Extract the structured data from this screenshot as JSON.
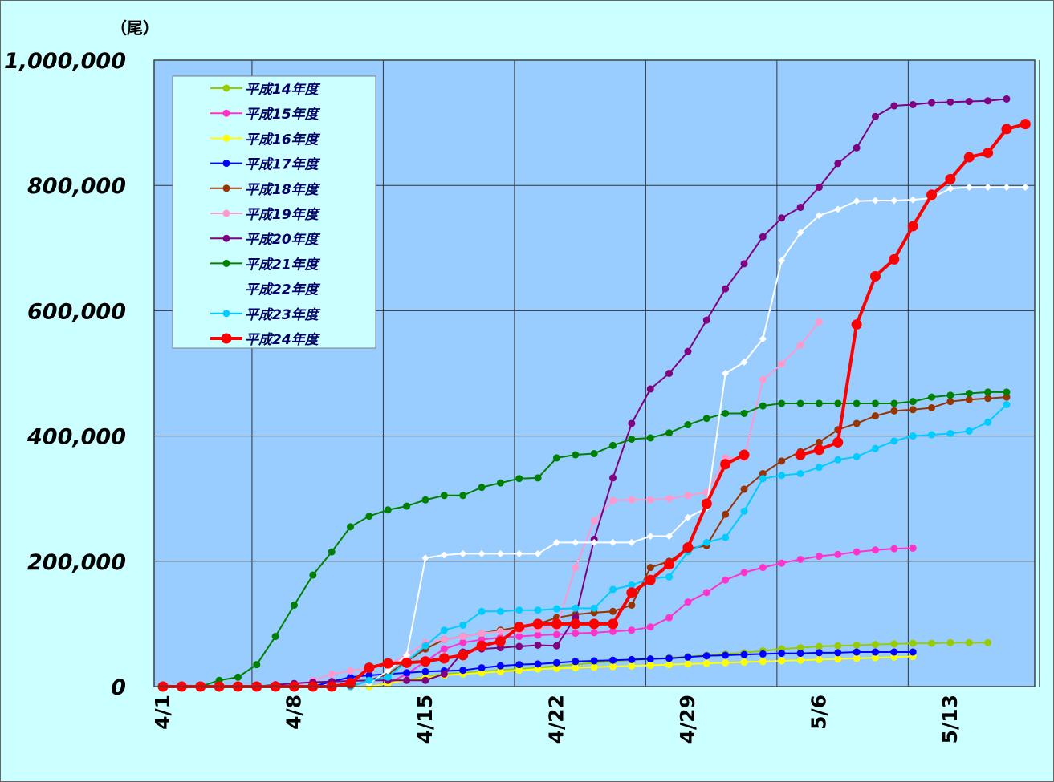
{
  "chart_data": {
    "type": "line",
    "unit_label": "（尾）",
    "x_ticks": [
      "4/1",
      "4/8",
      "4/15",
      "4/22",
      "4/29",
      "5/6",
      "5/13"
    ],
    "x_range": [
      "4/1",
      "5/16"
    ],
    "ylim": [
      0,
      1000000
    ],
    "y_ticks": [
      "0",
      "200,000",
      "400,000",
      "600,000",
      "800,000",
      "1,000,000"
    ],
    "grid": true,
    "legend_position": "top-left",
    "plot_background": "#99ccff",
    "series": [
      {
        "name": "平成14年度",
        "color": "#99cc00",
        "marker": "circle",
        "start_day": 0,
        "values": [
          0,
          0,
          0,
          0,
          0,
          0,
          0,
          0,
          0,
          0,
          0,
          0,
          5000,
          10000,
          15000,
          20000,
          22000,
          24000,
          26000,
          28000,
          30000,
          33000,
          35000,
          38000,
          40000,
          42000,
          44000,
          46000,
          48000,
          50000,
          52000,
          54000,
          57000,
          60000,
          62000,
          64000,
          65000,
          66000,
          67000,
          68000,
          69000,
          69000,
          70000,
          70000,
          70000
        ]
      },
      {
        "name": "平成15年度",
        "color": "#ff33cc",
        "marker": "circle",
        "start_day": 0,
        "values": [
          0,
          0,
          0,
          0,
          0,
          0,
          0,
          0,
          0,
          0,
          0,
          0,
          5000,
          20000,
          40000,
          60000,
          70000,
          75000,
          78000,
          80000,
          82000,
          83000,
          85000,
          86000,
          88000,
          90000,
          95000,
          110000,
          135000,
          150000,
          170000,
          182000,
          190000,
          197000,
          203000,
          208000,
          211000,
          215000,
          218000,
          220000,
          221000
        ]
      },
      {
        "name": "平成16年度",
        "color": "#ffff00",
        "marker": "circle",
        "start_day": 0,
        "values": [
          0,
          0,
          0,
          0,
          0,
          0,
          0,
          0,
          0,
          0,
          0,
          0,
          5000,
          10000,
          14000,
          18000,
          20000,
          22000,
          24000,
          26000,
          28000,
          29000,
          30000,
          31000,
          32000,
          33000,
          34000,
          35000,
          36000,
          37000,
          38000,
          39000,
          40000,
          41000,
          42000,
          43000,
          44000,
          45000,
          46000,
          47000,
          48000
        ]
      },
      {
        "name": "平成17年度",
        "color": "#0000ff",
        "marker": "circle",
        "start_day": 0,
        "values": [
          0,
          0,
          0,
          0,
          0,
          0,
          0,
          0,
          0,
          8000,
          15000,
          18000,
          20000,
          22000,
          24000,
          25000,
          26000,
          30000,
          33000,
          35000,
          36000,
          38000,
          40000,
          41000,
          42000,
          43000,
          44000,
          45000,
          47000,
          49000,
          50000,
          51000,
          52000,
          53000,
          53000,
          54000,
          54000,
          55000,
          55000,
          55000,
          55000
        ]
      },
      {
        "name": "平成18年度",
        "color": "#993300",
        "marker": "circle",
        "start_day": 0,
        "values": [
          0,
          0,
          0,
          0,
          0,
          0,
          0,
          0,
          0,
          0,
          0,
          10000,
          20000,
          40000,
          60000,
          75000,
          80000,
          85000,
          90000,
          95000,
          100000,
          110000,
          115000,
          118000,
          120000,
          130000,
          190000,
          200000,
          220000,
          225000,
          275000,
          315000,
          340000,
          360000,
          375000,
          390000,
          410000,
          420000,
          432000,
          440000,
          442000,
          445000,
          455000,
          458000,
          460000,
          462000
        ]
      },
      {
        "name": "平成19年度",
        "color": "#ff99cc",
        "marker": "circle",
        "start_day": 0,
        "values": [
          0,
          0,
          0,
          0,
          0,
          0,
          0,
          0,
          10000,
          20000,
          25000,
          30000,
          35000,
          50000,
          70000,
          75000,
          80000,
          85000,
          88000,
          90000,
          92000,
          95000,
          190000,
          265000,
          297000,
          298000,
          298000,
          300000,
          305000,
          310000,
          365000,
          365000,
          490000,
          515000,
          545000,
          582000
        ]
      },
      {
        "name": "平成20年度",
        "color": "#800080",
        "marker": "circle",
        "start_day": 0,
        "values": [
          0,
          0,
          0,
          0,
          0,
          0,
          3000,
          5000,
          7000,
          8000,
          9000,
          10000,
          10000,
          10000,
          10000,
          20000,
          55000,
          60000,
          62000,
          64000,
          66000,
          65000,
          110000,
          235000,
          333000,
          420000,
          475000,
          500000,
          535000,
          585000,
          635000,
          675000,
          718000,
          748000,
          765000,
          797000,
          835000,
          860000,
          910000,
          927000,
          929000,
          932000,
          933000,
          934000,
          935000,
          938000
        ]
      },
      {
        "name": "平成21年度",
        "color": "#008000",
        "marker": "circle",
        "start_day": 0,
        "values": [
          0,
          0,
          0,
          10000,
          15000,
          35000,
          80000,
          130000,
          178000,
          215000,
          255000,
          272000,
          282000,
          288000,
          298000,
          305000,
          305000,
          318000,
          325000,
          332000,
          333000,
          365000,
          370000,
          372000,
          385000,
          395000,
          397000,
          405000,
          418000,
          428000,
          436000,
          436000,
          448000,
          452000,
          452000,
          452000,
          452000,
          452000,
          452000,
          452000,
          455000,
          462000,
          465000,
          468000,
          470000,
          470000
        ]
      },
      {
        "name": "平成22年度",
        "color": "#ffffff",
        "marker": "diamond",
        "start_day": 11,
        "values": [
          5000,
          25000,
          50000,
          205000,
          210000,
          212000,
          212000,
          212000,
          212000,
          212000,
          230000,
          230000,
          230000,
          230000,
          230000,
          240000,
          240000,
          270000,
          285000,
          500000,
          518000,
          555000,
          680000,
          725000,
          752000,
          762000,
          775000,
          776000,
          776000,
          777000,
          780000,
          795000,
          797000,
          797000,
          797000,
          797000
        ]
      },
      {
        "name": "平成23年度",
        "color": "#00ccff",
        "marker": "circle",
        "start_day": 0,
        "values": [
          0,
          0,
          0,
          0,
          0,
          0,
          0,
          0,
          0,
          0,
          0,
          10000,
          15000,
          40000,
          65000,
          90000,
          98000,
          120000,
          120000,
          122000,
          122000,
          124000,
          125000,
          125000,
          155000,
          162000,
          172000,
          175000,
          215000,
          230000,
          238000,
          280000,
          332000,
          337000,
          340000,
          350000,
          362000,
          367000,
          380000,
          392000,
          400000,
          402000,
          404000,
          408000,
          422000,
          450000
        ]
      },
      {
        "name": "平成24年度",
        "color": "#ff0000",
        "marker": "circle",
        "start_day": 0,
        "values": [
          0,
          0,
          0,
          0,
          0,
          0,
          0,
          0,
          0,
          0,
          5000,
          30000,
          37000,
          38000,
          40000,
          45000,
          50000,
          65000,
          72000,
          95000,
          100000,
          100000,
          100000,
          100000,
          100000,
          150000,
          170000,
          195000,
          222000,
          292000,
          355000,
          370000,
          null,
          null,
          370000,
          378000,
          390000,
          578000,
          655000,
          682000,
          735000,
          785000,
          810000,
          845000,
          852000,
          890000,
          898000
        ]
      }
    ]
  }
}
